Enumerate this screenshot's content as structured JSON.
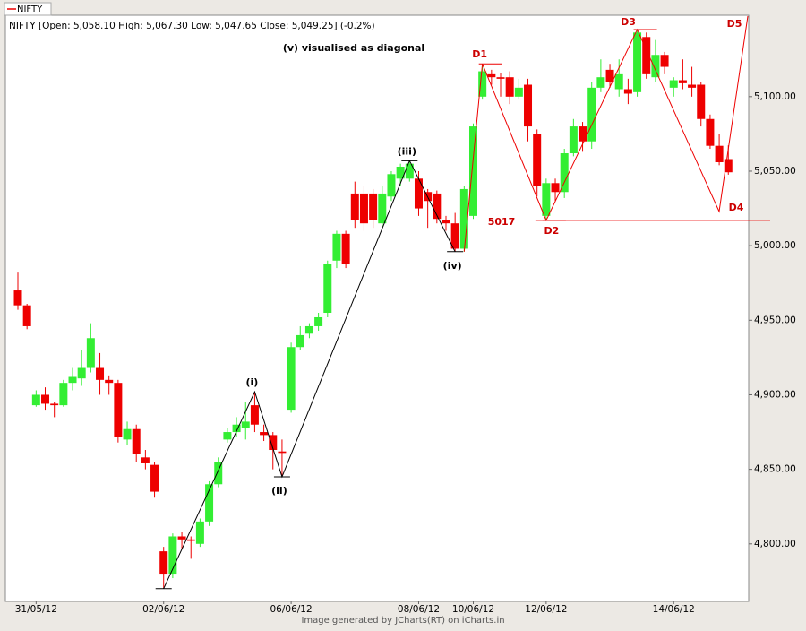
{
  "chart_data": {
    "type": "candlestick",
    "header": "NIFTY [Open: 5,058.10  High: 5,067.30  Low: 5,047.65  Close: 5,049.25] (-0.2%)",
    "footer": "Image generated by  JCharts(RT) on iCharts.in",
    "note": "(v) visualised as diagonal",
    "wave_labels": [
      "(i)",
      "(ii)",
      "(iii)",
      "(iv)"
    ],
    "d_labels": [
      "D1",
      "D2",
      "D3",
      "D4",
      "D5"
    ],
    "support": 5017,
    "up_color": "#33ee33",
    "down_color": "#ee0000",
    "legend_color": "#ee0000",
    "categories": [
      null,
      null,
      "31/05/12",
      null,
      null,
      null,
      null,
      null,
      null,
      null,
      null,
      null,
      null,
      null,
      null,
      null,
      "02/06/12",
      null,
      null,
      null,
      null,
      null,
      null,
      null,
      null,
      null,
      null,
      null,
      null,
      null,
      "06/06/12",
      null,
      null,
      null,
      null,
      null,
      null,
      null,
      null,
      null,
      null,
      null,
      null,
      null,
      "08/06/12",
      null,
      null,
      null,
      null,
      null,
      "10/06/12",
      null,
      null,
      null,
      null,
      null,
      null,
      null,
      "12/06/12",
      null,
      null,
      null,
      null,
      null,
      null,
      null,
      null,
      null,
      null,
      null,
      null,
      null,
      "14/06/12",
      null,
      null,
      null,
      null,
      null,
      null
    ],
    "series": [
      {
        "name": "NIFTY",
        "open": [
          4970,
          4960,
          4893,
          4900,
          4894,
          4893,
          4908,
          4911,
          4918,
          4918,
          4910,
          4908,
          4870,
          4877,
          4858,
          4853,
          4795,
          4780,
          4805,
          4803,
          4800,
          4815,
          4840,
          4870,
          4875,
          4878,
          4893,
          4875,
          4873,
          4862,
          4890,
          4932,
          4941,
          4946,
          4955,
          4990,
          5008,
          5035,
          5035,
          5035,
          5015,
          5033,
          5045,
          5045,
          5045,
          5036,
          5035,
          5017,
          5015,
          4998,
          5020,
          5100,
          5115,
          5113,
          5113,
          5100,
          5108,
          5075,
          5020,
          5042,
          5036,
          5062,
          5080,
          5070,
          5106,
          5118,
          5105,
          5105,
          5103,
          5140,
          5113,
          5128,
          5106,
          5111,
          5108,
          5108,
          5085,
          5067,
          5058.1
        ],
        "high": [
          4982,
          4961,
          4903,
          4905,
          4895,
          4910,
          4918,
          4930,
          4948,
          4928,
          4913,
          4910,
          4882,
          4880,
          4863,
          4855,
          4798,
          4807,
          4808,
          4805,
          4817,
          4842,
          4858,
          4878,
          4885,
          4895,
          4902,
          4880,
          4875,
          4870,
          4935,
          4946,
          4948,
          4955,
          4990,
          5010,
          5010,
          5043,
          5040,
          5038,
          5040,
          5050,
          5055,
          5057,
          5050,
          5038,
          5037,
          5020,
          5022,
          5040,
          5082,
          5122,
          5118,
          5116,
          5117,
          5112,
          5112,
          5078,
          5045,
          5045,
          5065,
          5085,
          5083,
          5110,
          5125,
          5122,
          5125,
          5112,
          5145,
          5143,
          5138,
          5130,
          5113,
          5125,
          5120,
          5110,
          5088,
          5075,
          5067.3
        ],
        "low": [
          4957,
          4944,
          4892,
          4890,
          4885,
          4892,
          4903,
          4906,
          4915,
          4900,
          4900,
          4868,
          4866,
          4855,
          4850,
          4831,
          4770,
          4777,
          4797,
          4790,
          4798,
          4812,
          4838,
          4868,
          4872,
          4870,
          4875,
          4869,
          4850,
          4845,
          4888,
          4930,
          4938,
          4943,
          4952,
          4985,
          4985,
          5012,
          5010,
          5012,
          5012,
          5030,
          5040,
          5043,
          5020,
          5012,
          5015,
          5010,
          4996,
          4996,
          5018,
          5098,
          5108,
          5100,
          5095,
          5098,
          5070,
          5033,
          5017,
          5030,
          5032,
          5060,
          5063,
          5065,
          5103,
          5106,
          5100,
          5095,
          5100,
          5112,
          5110,
          5115,
          5100,
          5105,
          5100,
          5080,
          5065,
          5054,
          5047.65
        ],
        "close": [
          4960,
          4946,
          4900,
          4894,
          4893,
          4908,
          4912,
          4918,
          4938,
          4910,
          4908,
          4872,
          4877,
          4860,
          4854,
          4835,
          4780,
          4805,
          4803,
          4802,
          4815,
          4840,
          4855,
          4875,
          4880,
          4882,
          4880,
          4873,
          4863,
          4861,
          4932,
          4940,
          4946,
          4952,
          4988,
          5008,
          4988,
          5017,
          5015,
          5017,
          5035,
          5048,
          5053,
          5055,
          5025,
          5030,
          5018,
          5015,
          4998,
          5038,
          5080,
          5117,
          5113,
          5112,
          5100,
          5106,
          5080,
          5040,
          5042,
          5036,
          5062,
          5080,
          5070,
          5106,
          5113,
          5110,
          5115,
          5102,
          5143,
          5115,
          5128,
          5120,
          5111,
          5109,
          5106,
          5085,
          5067,
          5056,
          5049.25
        ]
      }
    ],
    "ylim": [
      4762,
      5154
    ],
    "yticks": [
      {
        "value": 4800,
        "label": "4,800.00"
      },
      {
        "value": 4850,
        "label": "4,850.00"
      },
      {
        "value": 4900,
        "label": "4,900.00"
      },
      {
        "value": 4950,
        "label": "4,950.00"
      },
      {
        "value": 5000,
        "label": "5,000.00"
      },
      {
        "value": 5050,
        "label": "5,050.00"
      },
      {
        "value": 5100,
        "label": "5,100.00"
      }
    ]
  }
}
